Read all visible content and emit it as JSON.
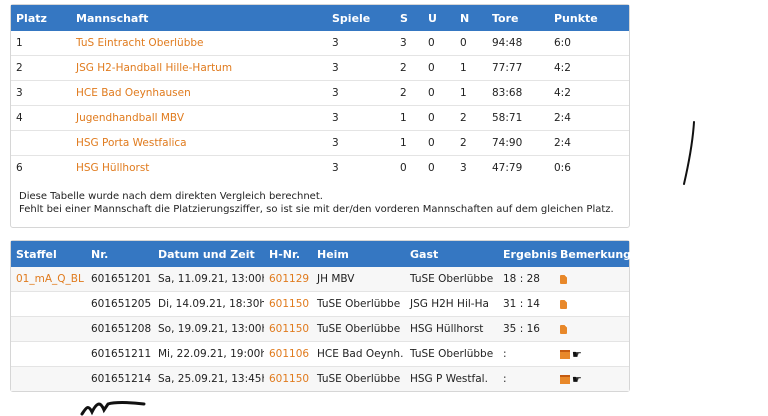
{
  "standings": {
    "headers": [
      "Platz",
      "Mannschaft",
      "Spiele",
      "S",
      "U",
      "N",
      "Tore",
      "Punkte"
    ],
    "rows": [
      {
        "platz": "1",
        "team": "TuS Eintracht Oberlübbe",
        "spiele": "3",
        "s": "3",
        "u": "0",
        "n": "0",
        "tore": "94:48",
        "punkte": "6:0"
      },
      {
        "platz": "2",
        "team": "JSG H2-Handball Hille-Hartum",
        "spiele": "3",
        "s": "2",
        "u": "0",
        "n": "1",
        "tore": "77:77",
        "punkte": "4:2"
      },
      {
        "platz": "3",
        "team": "HCE Bad Oeynhausen",
        "spiele": "3",
        "s": "2",
        "u": "0",
        "n": "1",
        "tore": "83:68",
        "punkte": "4:2"
      },
      {
        "platz": "4",
        "team": "Jugendhandball MBV",
        "spiele": "3",
        "s": "1",
        "u": "0",
        "n": "2",
        "tore": "58:71",
        "punkte": "2:4"
      },
      {
        "platz": "",
        "team": "HSG Porta Westfalica",
        "spiele": "3",
        "s": "1",
        "u": "0",
        "n": "2",
        "tore": "74:90",
        "punkte": "2:4"
      },
      {
        "platz": "6",
        "team": "HSG Hüllhorst",
        "spiele": "3",
        "s": "0",
        "u": "0",
        "n": "3",
        "tore": "47:79",
        "punkte": "0:6"
      }
    ],
    "note_line1": "Diese Tabelle wurde nach dem direkten Vergleich berechnet.",
    "note_line2": "Fehlt bei einer Mannschaft die Platzierungsziffer, so ist sie mit der/den vorderen Mannschaften auf dem gleichen Platz."
  },
  "games": {
    "headers": [
      "Staffel",
      "Nr.",
      "Datum und Zeit",
      "H-Nr.",
      "Heim",
      "Gast",
      "Ergebnis",
      "Bemerkung"
    ],
    "rows": [
      {
        "staffel": "01_mA_Q_BL",
        "nr": "601651201",
        "datum": "Sa, 11.09.21, 13:00h",
        "hnr": "601129",
        "heim": "JH MBV",
        "gast": "TuSE Oberlübbe",
        "ergebnis": "18 : 28",
        "bemerkung_icon": "report-icon"
      },
      {
        "staffel": "",
        "nr": "601651205",
        "datum": "Di, 14.09.21, 18:30h",
        "hnr": "601150",
        "heim": "TuSE Oberlübbe",
        "gast": "JSG H2H Hil-Ha",
        "ergebnis": "31 : 14",
        "bemerkung_icon": "report-icon"
      },
      {
        "staffel": "",
        "nr": "601651208",
        "datum": "So, 19.09.21, 13:00h",
        "hnr": "601150",
        "heim": "TuSE Oberlübbe",
        "gast": "HSG Hüllhorst",
        "ergebnis": "35 : 16",
        "bemerkung_icon": "report-icon"
      },
      {
        "staffel": "",
        "nr": "601651211",
        "datum": "Mi, 22.09.21, 19:00h",
        "hnr": "601106",
        "heim": "HCE Bad Oeynh.",
        "gast": "TuSE Oberlübbe",
        "ergebnis": ":",
        "bemerkung_icon": "calendar-hand-icon"
      },
      {
        "staffel": "",
        "nr": "601651214",
        "datum": "Sa, 25.09.21, 13:45h",
        "hnr": "601150",
        "heim": "TuSE Oberlübbe",
        "gast": "HSG P Westfal.",
        "ergebnis": ":",
        "bemerkung_icon": "calendar-hand-icon"
      }
    ]
  },
  "colors": {
    "header_bg": "#3577c2",
    "link": "#e07b1e",
    "icon": "#e8882a"
  }
}
